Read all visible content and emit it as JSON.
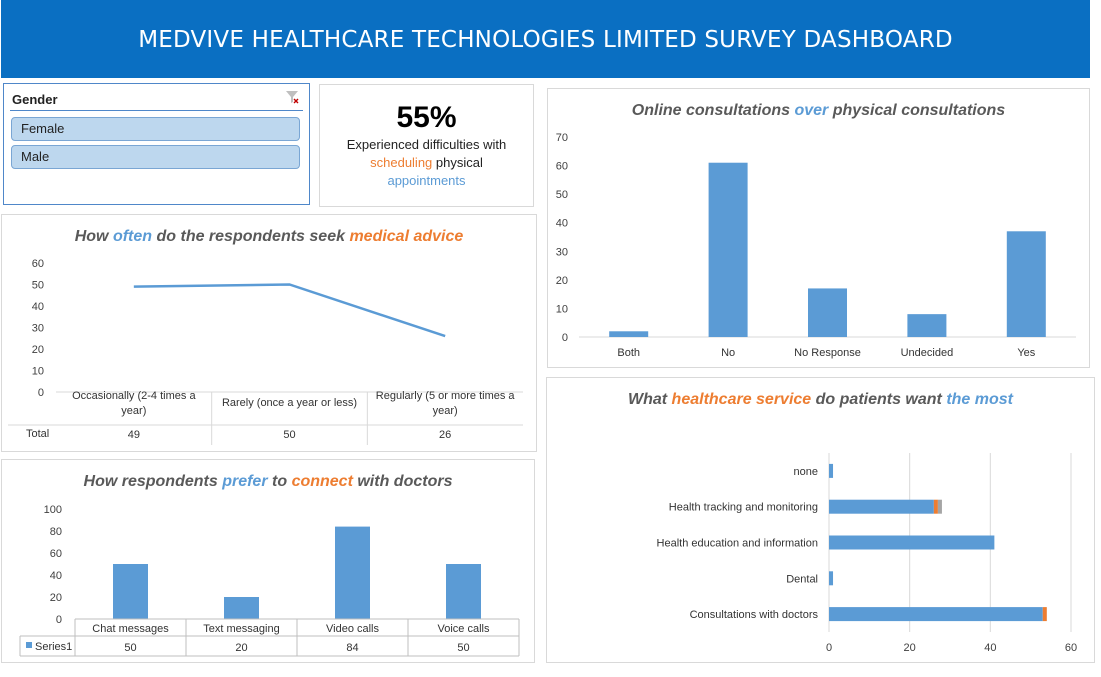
{
  "banner": {
    "title": "MEDVIVE HEALTHCARE TECHNOLOGIES LIMITED SURVEY DASHBOARD"
  },
  "slicer": {
    "header": "Gender",
    "items": [
      "Female",
      "Male"
    ],
    "clear_icon": "filter-clear-icon"
  },
  "kpi": {
    "value": "55%",
    "line1": "Experienced difficulties with",
    "word_scheduling": "scheduling",
    "word_physical": " physical",
    "word_appointments": "appointments"
  },
  "colors": {
    "banner": "#0a6fc2",
    "bar": "#5b9bd5",
    "orange": "#ed7d31",
    "title_gray": "#595959"
  },
  "chart_data": [
    {
      "id": "advice",
      "type": "line",
      "title_parts": [
        "How ",
        "often",
        " do the respondents seek ",
        "medical advice"
      ],
      "categories": [
        "Occasionally (2-4 times a year)",
        "Rarely (once a year or less)",
        "Regularly (5 or more times a year)"
      ],
      "series": [
        {
          "name": "Total",
          "values": [
            49,
            50,
            26
          ]
        }
      ],
      "ylim": [
        0,
        60
      ],
      "yticks": [
        0,
        10,
        20,
        30,
        40,
        50,
        60
      ],
      "data_table": true,
      "grid": false
    },
    {
      "id": "online",
      "type": "bar",
      "title_parts": [
        "Online consultations ",
        "over",
        " physical consultations"
      ],
      "categories": [
        "Both",
        "No",
        "No Response",
        "Undecided",
        "Yes"
      ],
      "values": [
        2,
        61,
        17,
        8,
        37
      ],
      "ylim": [
        0,
        70
      ],
      "yticks": [
        0,
        10,
        20,
        30,
        40,
        50,
        60,
        70
      ],
      "grid": false
    },
    {
      "id": "connect",
      "type": "bar",
      "title_parts": [
        "How respondents ",
        "prefer",
        " to ",
        "connect",
        " with doctors"
      ],
      "categories": [
        "Chat messages",
        "Text messaging",
        "Video calls",
        "Voice calls"
      ],
      "series": [
        {
          "name": "Series1",
          "values": [
            50,
            20,
            84,
            50
          ]
        }
      ],
      "ylim": [
        0,
        100
      ],
      "yticks": [
        0,
        20,
        40,
        60,
        80,
        100
      ],
      "data_table": true,
      "grid": false
    },
    {
      "id": "service",
      "type": "bar",
      "orientation": "horizontal",
      "stacked": true,
      "title_parts": [
        "What ",
        "healthcare service",
        " do patients want ",
        "the most"
      ],
      "categories": [
        "none",
        "Health tracking and monitoring",
        "Health education and information",
        "Dental",
        "Consultations with doctors"
      ],
      "series": [
        {
          "values": [
            1,
            26,
            41,
            1,
            53
          ]
        },
        {
          "values": [
            0,
            1,
            0,
            0,
            1
          ]
        },
        {
          "values": [
            0,
            1,
            0,
            0,
            0
          ]
        }
      ],
      "series_colors": [
        "#5b9bd5",
        "#ed7d31",
        "#a5a5a5"
      ],
      "xlim": [
        0,
        60
      ],
      "xticks": [
        0,
        20,
        40,
        60
      ],
      "grid": true
    }
  ]
}
